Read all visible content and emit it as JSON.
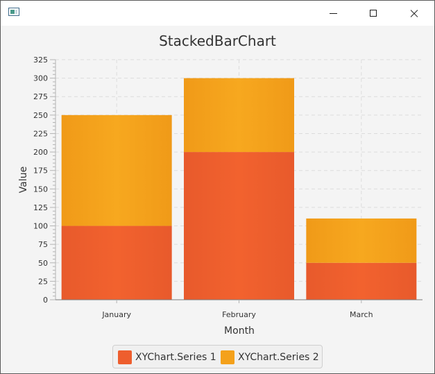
{
  "window": {
    "icon": "app-window-icon",
    "buttons": [
      "minimize-icon",
      "maximize-icon",
      "close-icon"
    ]
  },
  "chart_data": {
    "type": "bar",
    "stacked": true,
    "title": "StackedBarChart",
    "xlabel": "Month",
    "ylabel": "Value",
    "categories": [
      "January",
      "February",
      "March"
    ],
    "series": [
      {
        "name": "XYChart.Series 1",
        "values": [
          100,
          200,
          50
        ],
        "color": "#ee5e2e"
      },
      {
        "name": "XYChart.Series 2",
        "values": [
          150,
          100,
          60
        ],
        "color": "#f4a11b"
      }
    ],
    "ylim": [
      0,
      325
    ],
    "ytick_step": 25,
    "yticks": [
      "0",
      "25",
      "50",
      "75",
      "100",
      "125",
      "150",
      "175",
      "200",
      "225",
      "250",
      "275",
      "300",
      "325"
    ],
    "grid": true,
    "legend_position": "bottom"
  }
}
